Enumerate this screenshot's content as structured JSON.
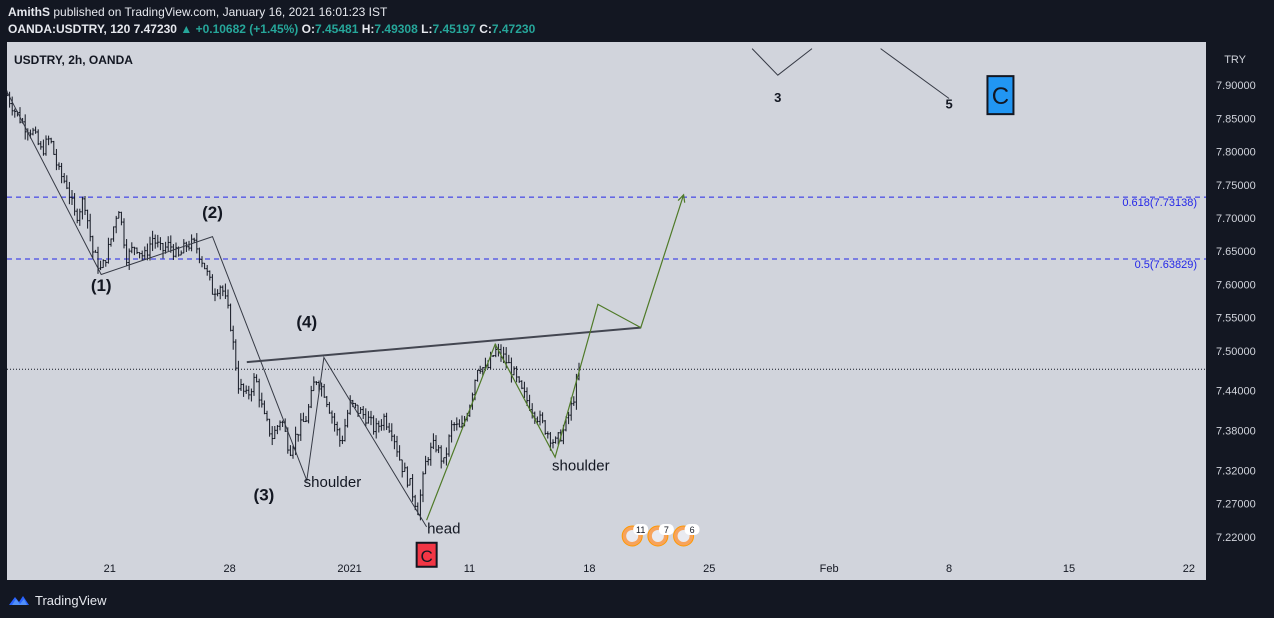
{
  "header": {
    "author": "AmithS",
    "published": "published on TradingView.com, January 16, 2021 16:01:23 IST",
    "symbol_line": "OANDA:USDTRY, 120",
    "last": "7.47230",
    "change": "+0.10682 (+1.45%)",
    "o_label": "O:",
    "o": "7.45481",
    "h_label": "H:",
    "h": "7.49308",
    "l_label": "L:",
    "l": "7.45197",
    "c_label": "C:",
    "c": "7.47230"
  },
  "footer": {
    "brand": "TradingView"
  },
  "colors": {
    "background": "#131722",
    "chart_area": "#d1d4dc",
    "candle": "#131722",
    "neckline": "#434651",
    "projection": "#4f7a28",
    "fib_line": "#2326e8",
    "wave_c_blue": "#2196f3",
    "wave_c_red": "#f23645",
    "up_text": "#26a69a"
  },
  "chart_data": {
    "type": "line",
    "title": "USDTRY, 2h, OANDA",
    "currency": "TRY",
    "x_tick_labels": [
      "21",
      "28",
      "2021",
      "11",
      "18",
      "25",
      "Feb",
      "8",
      "15",
      "22"
    ],
    "x_ticks": [
      "2020-12-21",
      "2020-12-28",
      "2021-01-04",
      "2021-01-11",
      "2021-01-18",
      "2021-01-25",
      "2021-02-01",
      "2021-02-08",
      "2021-02-15",
      "2021-02-22"
    ],
    "x_range": [
      "2020-12-15",
      "2021-02-23"
    ],
    "y_range": [
      7.155,
      7.965
    ],
    "y_ticks": [
      "7.90000",
      "7.85000",
      "7.80000",
      "7.75000",
      "7.70000",
      "7.65000",
      "7.60000",
      "7.55000",
      "7.50000",
      "7.44000",
      "7.38000",
      "7.32000",
      "7.27000",
      "7.22000"
    ],
    "y_tick_values": [
      7.9,
      7.85,
      7.8,
      7.75,
      7.7,
      7.65,
      7.6,
      7.55,
      7.5,
      7.44,
      7.38,
      7.32,
      7.27,
      7.22
    ],
    "last_price": 7.4723,
    "price_path": [
      [
        "2020-12-15T00:00",
        7.885
      ],
      [
        "2020-12-15T12:00",
        7.86
      ],
      [
        "2020-12-16T00:00",
        7.84
      ],
      [
        "2020-12-16T12:00",
        7.83
      ],
      [
        "2020-12-17T00:00",
        7.8
      ],
      [
        "2020-12-17T12:00",
        7.82
      ],
      [
        "2020-12-18T00:00",
        7.77
      ],
      [
        "2020-12-18T12:00",
        7.75
      ],
      [
        "2020-12-19T00:00",
        7.7
      ],
      [
        "2020-12-19T12:00",
        7.73
      ],
      [
        "2020-12-20T00:00",
        7.65
      ],
      [
        "2020-12-20T12:00",
        7.62
      ],
      [
        "2020-12-21T00:00",
        7.66
      ],
      [
        "2020-12-21T12:00",
        7.72
      ],
      [
        "2020-12-22T00:00",
        7.64
      ],
      [
        "2020-12-22T12:00",
        7.66
      ],
      [
        "2020-12-23T00:00",
        7.64
      ],
      [
        "2020-12-23T12:00",
        7.67
      ],
      [
        "2020-12-24T00:00",
        7.65
      ],
      [
        "2020-12-24T12:00",
        7.66
      ],
      [
        "2020-12-25T00:00",
        7.64
      ],
      [
        "2020-12-25T12:00",
        7.66
      ],
      [
        "2020-12-26T00:00",
        7.66
      ],
      [
        "2020-12-26T12:00",
        7.63
      ],
      [
        "2020-12-27T00:00",
        7.59
      ],
      [
        "2020-12-27T12:00",
        7.6
      ],
      [
        "2020-12-28T00:00",
        7.55
      ],
      [
        "2020-12-28T12:00",
        7.45
      ],
      [
        "2020-12-29T00:00",
        7.43
      ],
      [
        "2020-12-29T12:00",
        7.46
      ],
      [
        "2020-12-30T00:00",
        7.4
      ],
      [
        "2020-12-30T12:00",
        7.37
      ],
      [
        "2020-12-31T00:00",
        7.4
      ],
      [
        "2020-12-31T12:00",
        7.35
      ],
      [
        "2021-01-01T00:00",
        7.38
      ],
      [
        "2021-01-01T12:00",
        7.4
      ],
      [
        "2021-01-02T00:00",
        7.46
      ],
      [
        "2021-01-02T12:00",
        7.44
      ],
      [
        "2021-01-03T00:00",
        7.4
      ],
      [
        "2021-01-03T12:00",
        7.36
      ],
      [
        "2021-01-04T00:00",
        7.42
      ],
      [
        "2021-01-04T12:00",
        7.41
      ],
      [
        "2021-01-05T00:00",
        7.4
      ],
      [
        "2021-01-05T12:00",
        7.38
      ],
      [
        "2021-01-06T00:00",
        7.4
      ],
      [
        "2021-01-06T12:00",
        7.38
      ],
      [
        "2021-01-07T00:00",
        7.33
      ],
      [
        "2021-01-07T12:00",
        7.3
      ],
      [
        "2021-01-08T00:00",
        7.26
      ],
      [
        "2021-01-08T12:00",
        7.34
      ],
      [
        "2021-01-09T00:00",
        7.36
      ],
      [
        "2021-01-09T12:00",
        7.33
      ],
      [
        "2021-01-10T00:00",
        7.39
      ],
      [
        "2021-01-10T12:00",
        7.38
      ],
      [
        "2021-01-11T00:00",
        7.42
      ],
      [
        "2021-01-11T12:00",
        7.48
      ],
      [
        "2021-01-12T00:00",
        7.47
      ],
      [
        "2021-01-12T12:00",
        7.5
      ],
      [
        "2021-01-13T00:00",
        7.49
      ],
      [
        "2021-01-13T12:00",
        7.47
      ],
      [
        "2021-01-14T00:00",
        7.44
      ],
      [
        "2021-01-14T12:00",
        7.42
      ],
      [
        "2021-01-15T00:00",
        7.4
      ],
      [
        "2021-01-15T12:00",
        7.38
      ],
      [
        "2021-01-16T00:00",
        7.36
      ],
      [
        "2021-01-16T12:00",
        7.38
      ],
      [
        "2021-01-17T00:00",
        7.42
      ],
      [
        "2021-01-17T12:00",
        7.48
      ]
    ],
    "fib_levels": [
      {
        "label": "0.618(7.73138)",
        "value": 7.73138
      },
      {
        "label": "0.5(7.63829)",
        "value": 7.63829
      }
    ],
    "wave_labels": [
      {
        "text": "(1)",
        "x": "2020-12-20T12:00",
        "y": 7.59
      },
      {
        "text": "(2)",
        "x": "2020-12-27T00:00",
        "y": 7.7
      },
      {
        "text": "(4)",
        "x": "2021-01-01T12:00",
        "y": 7.535
      },
      {
        "text": "(3)",
        "x": "2020-12-30T00:00",
        "y": 7.275
      },
      {
        "text": "3",
        "x": "2021-01-29T00:00",
        "y": 7.875
      },
      {
        "text": "5",
        "x": "2021-02-08T00:00",
        "y": 7.865
      }
    ],
    "annotations": [
      {
        "text": "shoulder",
        "x": "2021-01-03T00:00",
        "y": 7.295
      },
      {
        "text": "head",
        "x": "2021-01-09T12:00",
        "y": 7.225
      },
      {
        "text": "shoulder",
        "x": "2021-01-17T12:00",
        "y": 7.32
      }
    ],
    "wave_c_markers": [
      {
        "text": "C",
        "x": "2021-02-11T00:00",
        "y": 7.885,
        "color": "blue"
      },
      {
        "text": "C",
        "x": "2021-01-08T12:00",
        "y": 7.193,
        "color": "red"
      }
    ],
    "event_badges": [
      {
        "text": "11",
        "x": "2021-01-20T12:00"
      },
      {
        "text": "7",
        "x": "2021-01-22T00:00"
      },
      {
        "text": "6",
        "x": "2021-01-23T12:00"
      }
    ],
    "wave_path": [
      [
        "2020-12-15T00:00",
        7.89
      ],
      [
        "2020-12-20T12:00",
        7.615
      ],
      [
        "2020-12-27T00:00",
        7.672
      ],
      [
        "2021-01-01T12:00",
        7.305
      ],
      [
        "2021-01-02T12:00",
        7.49
      ],
      [
        "2021-01-08T12:00",
        7.235
      ]
    ],
    "neckline": [
      [
        "2020-12-29T00:00",
        7.483
      ],
      [
        "2021-01-21T00:00",
        7.535
      ]
    ],
    "projection_path": [
      [
        "2021-01-08T12:00",
        7.245
      ],
      [
        "2021-01-12T12:00",
        7.51
      ],
      [
        "2021-01-16T00:00",
        7.34
      ],
      [
        "2021-01-18T12:00",
        7.57
      ],
      [
        "2021-01-21T00:00",
        7.535
      ],
      [
        "2021-01-23T12:00",
        7.735
      ]
    ],
    "upper_wave_path": [
      [
        "2021-01-27T12:00",
        7.955
      ],
      [
        "2021-01-29T00:00",
        7.915
      ],
      [
        "2021-01-31T00:00",
        7.955
      ]
    ],
    "upper_wave_path2": [
      [
        "2021-02-04T00:00",
        7.955
      ],
      [
        "2021-02-08T00:00",
        7.88
      ]
    ]
  }
}
